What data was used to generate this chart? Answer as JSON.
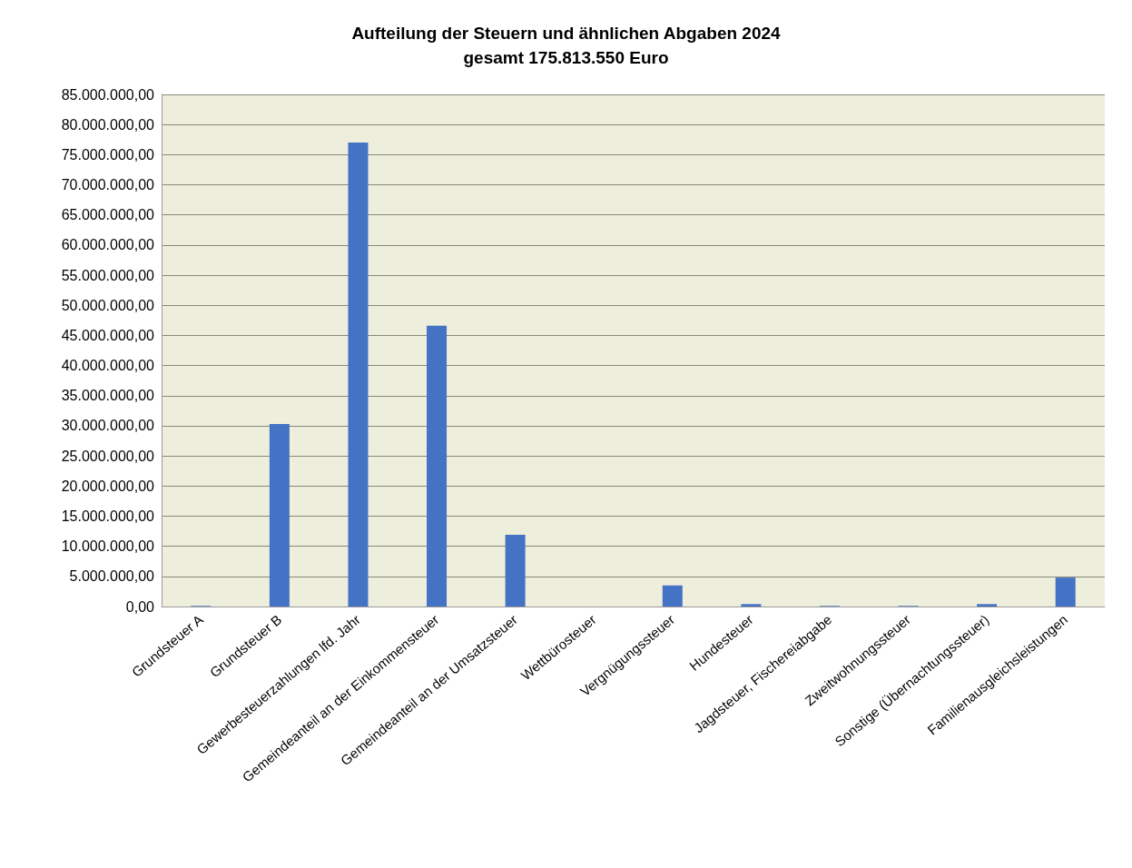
{
  "chart_data": {
    "type": "bar",
    "title": "Aufteilung der Steuern und ähnlichen Abgaben 2024",
    "subtitle": "gesamt 175.813.550 Euro",
    "categories": [
      "Grundsteuer A",
      "Grundsteuer B",
      "Gewerbesteuerzahlungen lfd. Jahr",
      "Gemeindeanteil an der Einkommensteuer",
      "Gemeindeanteil an der Umsatzsteuer",
      "Wettbürosteuer",
      "Vergnügungssteuer",
      "Hundesteuer",
      "Jagdsteuer, Fischereiabgabe",
      "Zweitwohnungssteuer",
      "Sonstige (Übernachtungssteuer)",
      "Familienausgleichsleistungen"
    ],
    "values": [
      100000,
      30300000,
      77000000,
      46600000,
      11900000,
      0,
      3500000,
      400000,
      100000,
      100000,
      400000,
      4800000
    ],
    "color": "#4472c4",
    "ylim": [
      0,
      85000000
    ],
    "yticks": [
      {
        "value": 0,
        "label": "0,00"
      },
      {
        "value": 5000000,
        "label": "5.000.000,00"
      },
      {
        "value": 10000000,
        "label": "10.000.000,00"
      },
      {
        "value": 15000000,
        "label": "15.000.000,00"
      },
      {
        "value": 20000000,
        "label": "20.000.000,00"
      },
      {
        "value": 25000000,
        "label": "25.000.000,00"
      },
      {
        "value": 30000000,
        "label": "30.000.000,00"
      },
      {
        "value": 35000000,
        "label": "35.000.000,00"
      },
      {
        "value": 40000000,
        "label": "40.000.000,00"
      },
      {
        "value": 45000000,
        "label": "45.000.000,00"
      },
      {
        "value": 50000000,
        "label": "50.000.000,00"
      },
      {
        "value": 55000000,
        "label": "55.000.000,00"
      },
      {
        "value": 60000000,
        "label": "60.000.000,00"
      },
      {
        "value": 65000000,
        "label": "65.000.000,00"
      },
      {
        "value": 70000000,
        "label": "70.000.000,00"
      },
      {
        "value": 75000000,
        "label": "75.000.000,00"
      },
      {
        "value": 80000000,
        "label": "80.000.000,00"
      },
      {
        "value": 85000000,
        "label": "85.000.000,00"
      }
    ],
    "grid": "y"
  }
}
